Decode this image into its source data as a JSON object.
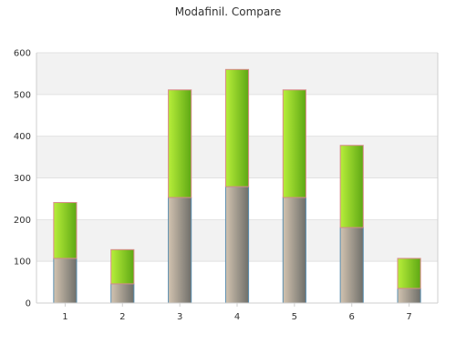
{
  "chart_data": {
    "type": "bar",
    "stacked": true,
    "title": "Modafinil. Compare",
    "xlabel": "",
    "ylabel": "",
    "categories": [
      "1",
      "2",
      "3",
      "4",
      "5",
      "6",
      "7"
    ],
    "series": [
      {
        "values": [
          107,
          46,
          253,
          279,
          253,
          181,
          35
        ]
      },
      {
        "values": [
          134,
          82,
          258,
          281,
          258,
          197,
          72
        ]
      }
    ],
    "totals": [
      241,
      128,
      511,
      560,
      511,
      378,
      107
    ],
    "ylim": [
      0,
      600
    ],
    "yticks": [
      "0",
      "100",
      "200",
      "300",
      "400",
      "500",
      "600"
    ],
    "grid": true,
    "legend": "none",
    "colors": {
      "lower_light": "#d2c3b0",
      "lower_dark": "#6f6f6a",
      "lower_border": "#5b8fb0",
      "upper_light": "#b8ee3a",
      "upper_dark": "#5ea814",
      "upper_border": "#d88a8a",
      "band": "#f2f2f2",
      "gridline": "#e2e2e2",
      "axis": "#cfcfcf"
    }
  }
}
